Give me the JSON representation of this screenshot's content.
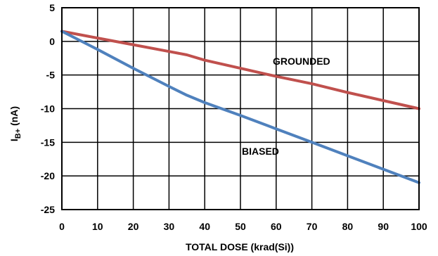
{
  "chart_data": {
    "type": "line",
    "title": "",
    "xlabel": "TOTAL DOSE (krad(Si))",
    "ylabel": {
      "main": "I",
      "sub": "B+",
      "unit": " (nA)"
    },
    "xlim": [
      0,
      100
    ],
    "ylim": [
      -25,
      5
    ],
    "xticks": [
      "0",
      "10",
      "20",
      "30",
      "40",
      "50",
      "60",
      "70",
      "80",
      "90",
      "100"
    ],
    "yticks": [
      "5",
      "0",
      "-5",
      "-10",
      "-15",
      "-20",
      "-25"
    ],
    "grid": true,
    "series": [
      {
        "name": "GROUNDED",
        "color": "#c0504d",
        "x": [
          0,
          10,
          20,
          30,
          35,
          40,
          50,
          60,
          70,
          80,
          90,
          100
        ],
        "y": [
          1.5,
          0.5,
          -0.5,
          -1.5,
          -2.0,
          -2.8,
          -4.0,
          -5.2,
          -6.3,
          -7.6,
          -8.8,
          -10.0
        ]
      },
      {
        "name": "BIASED",
        "color": "#4f81bd",
        "x": [
          0,
          10,
          20,
          30,
          35,
          40,
          50,
          60,
          70,
          80,
          90,
          100
        ],
        "y": [
          1.5,
          -1.2,
          -4.0,
          -6.7,
          -8.0,
          -9.1,
          -11.0,
          -13.0,
          -15.0,
          -17.0,
          -19.0,
          -21.0
        ]
      }
    ]
  }
}
